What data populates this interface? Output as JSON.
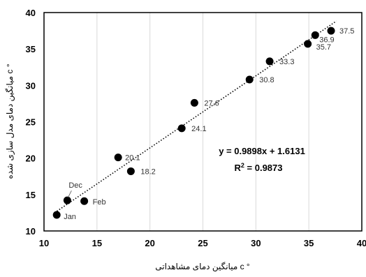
{
  "chart_data": {
    "type": "scatter",
    "title": "",
    "xlabel": "میانگین دمای مشاهداتی c °",
    "ylabel": "میانگین دمای مدل سازی شده c °",
    "xlim": [
      10,
      40
    ],
    "ylim": [
      10,
      40
    ],
    "xticks": [
      10,
      15,
      20,
      25,
      30,
      35,
      40
    ],
    "yticks": [
      10,
      15,
      20,
      25,
      30,
      35,
      40
    ],
    "grid": "vertical",
    "points": [
      {
        "x": 11.2,
        "y": 12.2,
        "label": "Jan"
      },
      {
        "x": 13.8,
        "y": 14.1,
        "label": "Feb"
      },
      {
        "x": 12.2,
        "y": 14.2,
        "label": "Dec"
      },
      {
        "x": 17.0,
        "y": 20.1,
        "label": "20.1"
      },
      {
        "x": 18.2,
        "y": 18.2,
        "label": "18.2"
      },
      {
        "x": 23.0,
        "y": 24.1,
        "label": "24.1"
      },
      {
        "x": 24.2,
        "y": 27.6,
        "label": "27.6"
      },
      {
        "x": 29.4,
        "y": 30.8,
        "label": "30.8"
      },
      {
        "x": 31.3,
        "y": 33.3,
        "label": "33.3"
      },
      {
        "x": 34.9,
        "y": 35.7,
        "label": "35.7"
      },
      {
        "x": 35.6,
        "y": 36.9,
        "label": "36.9"
      },
      {
        "x": 37.1,
        "y": 37.5,
        "label": "37.5"
      }
    ],
    "trendline": {
      "slope": 0.9898,
      "intercept": 1.6131,
      "style": "dotted"
    },
    "equation": "y = 0.9898x + 1.6131",
    "r2_text": "R",
    "r2_sup": "2",
    "r2_value": " = 0.9873",
    "colors": {
      "marker": "#000000",
      "grid": "#d9d9d9",
      "trend": "#000000"
    }
  }
}
